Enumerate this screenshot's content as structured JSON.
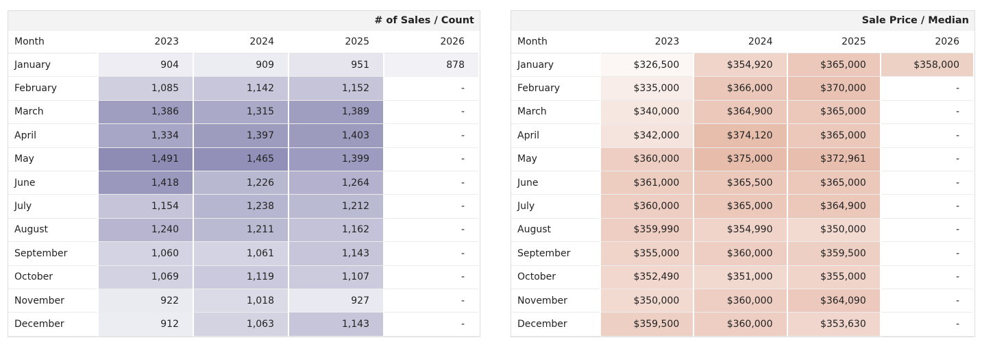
{
  "tables": [
    {
      "title": "# of Sales / Count",
      "color": "#8e8cb5",
      "columns": [
        "Month",
        "2023",
        "2024",
        "2025",
        "2026"
      ],
      "rows": [
        [
          "January",
          "904",
          "909",
          "951",
          "878"
        ],
        [
          "February",
          "1,085",
          "1,142",
          "1,152",
          "-"
        ],
        [
          "March",
          "1,386",
          "1,315",
          "1,389",
          "-"
        ],
        [
          "April",
          "1,334",
          "1,397",
          "1,403",
          "-"
        ],
        [
          "May",
          "1,491",
          "1,465",
          "1,399",
          "-"
        ],
        [
          "June",
          "1,418",
          "1,226",
          "1,264",
          "-"
        ],
        [
          "July",
          "1,154",
          "1,238",
          "1,212",
          "-"
        ],
        [
          "August",
          "1,240",
          "1,211",
          "1,162",
          "-"
        ],
        [
          "September",
          "1,060",
          "1,061",
          "1,143",
          "-"
        ],
        [
          "October",
          "1,069",
          "1,119",
          "1,107",
          "-"
        ],
        [
          "November",
          "922",
          "1,018",
          "927",
          "-"
        ],
        [
          "December",
          "912",
          "1,063",
          "1,143",
          "-"
        ]
      ]
    },
    {
      "title": "Sale Price / Median",
      "color": "#e7bcab",
      "columns": [
        "Month",
        "2023",
        "2024",
        "2025",
        "2026"
      ],
      "rows": [
        [
          "January",
          "$326,500",
          "$354,920",
          "$365,000",
          "$358,000"
        ],
        [
          "February",
          "$335,000",
          "$366,000",
          "$370,000",
          "-"
        ],
        [
          "March",
          "$340,000",
          "$364,900",
          "$365,000",
          "-"
        ],
        [
          "April",
          "$342,000",
          "$374,120",
          "$365,000",
          "-"
        ],
        [
          "May",
          "$360,000",
          "$375,000",
          "$372,961",
          "-"
        ],
        [
          "June",
          "$361,000",
          "$365,500",
          "$365,000",
          "-"
        ],
        [
          "July",
          "$360,000",
          "$365,000",
          "$364,900",
          "-"
        ],
        [
          "August",
          "$359,990",
          "$354,990",
          "$350,000",
          "-"
        ],
        [
          "September",
          "$355,000",
          "$360,000",
          "$359,500",
          "-"
        ],
        [
          "October",
          "$352,490",
          "$351,000",
          "$355,000",
          "-"
        ],
        [
          "November",
          "$350,000",
          "$360,000",
          "$364,090",
          "-"
        ],
        [
          "December",
          "$359,500",
          "$360,000",
          "$353,630",
          "-"
        ]
      ]
    }
  ]
}
